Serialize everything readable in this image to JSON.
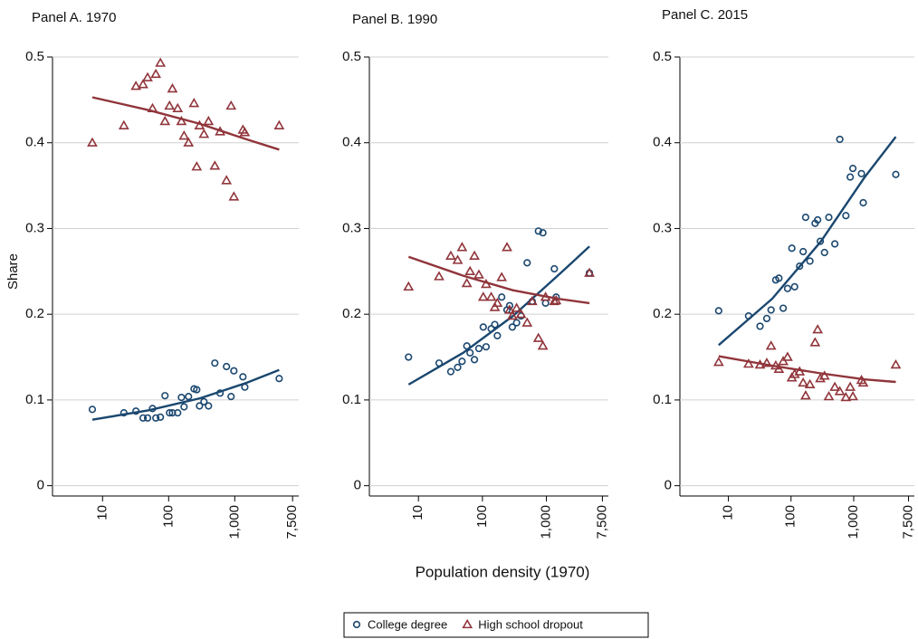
{
  "chart_data": [
    {
      "type": "scatter",
      "title": "Panel A. 1970",
      "y_label": "Share",
      "log_x": true,
      "grid": true,
      "xlim": [
        3.5,
        9300
      ],
      "ylim": [
        -0.012,
        0.5
      ],
      "xticks": [
        10,
        100,
        {
          "value": 1000,
          "label": "1,000"
        },
        {
          "value": 7500,
          "label": "7,500"
        }
      ],
      "yticks": [
        0,
        0.1,
        0.2,
        0.3,
        0.4,
        0.5
      ],
      "x": [
        7,
        21,
        32,
        41,
        48,
        57,
        64,
        75,
        88,
        103,
        114,
        137,
        156,
        171,
        200,
        242,
        266,
        293,
        342,
        401,
        500,
        600,
        750,
        880,
        970,
        1330,
        1420,
        4700
      ],
      "fit_x": [
        7,
        50,
        300,
        1500,
        4700
      ],
      "series": [
        {
          "name": "College degree",
          "color": "#1a476f",
          "marker": "circle",
          "values": [
            0.089,
            0.085,
            0.087,
            0.079,
            0.079,
            0.09,
            0.079,
            0.08,
            0.105,
            0.085,
            0.085,
            0.085,
            0.103,
            0.092,
            0.104,
            0.113,
            0.112,
            0.093,
            0.098,
            0.093,
            0.143,
            0.108,
            0.139,
            0.104,
            0.134,
            0.127,
            0.115,
            0.125
          ],
          "fit": [
            0.077,
            0.088,
            0.102,
            0.12,
            0.135
          ]
        },
        {
          "name": "High school dropout",
          "color": "#90353b",
          "marker": "triangle",
          "values": [
            0.4,
            0.42,
            0.466,
            0.468,
            0.476,
            0.44,
            0.48,
            0.493,
            0.425,
            0.443,
            0.463,
            0.44,
            0.425,
            0.408,
            0.4,
            0.446,
            0.372,
            0.42,
            0.41,
            0.425,
            0.373,
            0.413,
            0.356,
            0.443,
            0.337,
            0.415,
            0.412,
            0.42
          ],
          "fit": [
            0.453,
            0.438,
            0.422,
            0.404,
            0.392
          ]
        }
      ]
    },
    {
      "type": "scatter",
      "title": "Panel B. 1990",
      "x_label": "Population density (1970)",
      "log_x": true,
      "grid": true,
      "xlim": [
        3.5,
        9300
      ],
      "ylim": [
        -0.012,
        0.5
      ],
      "xticks": [
        10,
        100,
        {
          "value": 1000,
          "label": "1,000"
        },
        {
          "value": 7500,
          "label": "7,500"
        }
      ],
      "yticks": [
        0,
        0.1,
        0.2,
        0.3,
        0.4,
        0.5
      ],
      "x": [
        7,
        21,
        32,
        41,
        48,
        57,
        64,
        75,
        88,
        103,
        114,
        137,
        156,
        171,
        200,
        242,
        266,
        293,
        342,
        401,
        500,
        600,
        750,
        880,
        970,
        1330,
        1420,
        4700
      ],
      "fit_x": [
        7,
        50,
        300,
        1500,
        4700
      ],
      "series": [
        {
          "color": "#1a476f",
          "marker": "circle",
          "values": [
            0.15,
            0.143,
            0.133,
            0.138,
            0.145,
            0.163,
            0.155,
            0.147,
            0.16,
            0.185,
            0.162,
            0.183,
            0.188,
            0.175,
            0.22,
            0.205,
            0.21,
            0.185,
            0.19,
            0.198,
            0.26,
            0.215,
            0.297,
            0.295,
            0.213,
            0.253,
            0.22,
            0.248
          ],
          "fit": [
            0.118,
            0.155,
            0.198,
            0.245,
            0.279
          ]
        },
        {
          "color": "#90353b",
          "marker": "triangle",
          "values": [
            0.232,
            0.244,
            0.268,
            0.263,
            0.278,
            0.236,
            0.25,
            0.268,
            0.246,
            0.22,
            0.235,
            0.22,
            0.208,
            0.213,
            0.243,
            0.278,
            0.205,
            0.198,
            0.207,
            0.2,
            0.19,
            0.215,
            0.172,
            0.163,
            0.22,
            0.215,
            0.216,
            0.248
          ],
          "fit": [
            0.267,
            0.245,
            0.228,
            0.218,
            0.213
          ]
        }
      ]
    },
    {
      "type": "scatter",
      "title": "Panel C. 2015",
      "log_x": true,
      "grid": true,
      "xlim": [
        3.5,
        9300
      ],
      "ylim": [
        -0.012,
        0.5
      ],
      "xticks": [
        10,
        100,
        {
          "value": 1000,
          "label": "1,000"
        },
        {
          "value": 7500,
          "label": "7,500"
        }
      ],
      "yticks": [
        0,
        0.1,
        0.2,
        0.3,
        0.4,
        0.5
      ],
      "x": [
        7,
        21,
        32,
        41,
        48,
        57,
        64,
        75,
        88,
        103,
        114,
        137,
        156,
        171,
        200,
        242,
        266,
        293,
        342,
        401,
        500,
        600,
        750,
        880,
        970,
        1330,
        1420,
        4700
      ],
      "fit_x": [
        7,
        50,
        300,
        1500,
        4700
      ],
      "series": [
        {
          "color": "#1a476f",
          "marker": "circle",
          "values": [
            0.204,
            0.198,
            0.186,
            0.195,
            0.205,
            0.24,
            0.242,
            0.207,
            0.23,
            0.277,
            0.232,
            0.256,
            0.273,
            0.313,
            0.262,
            0.306,
            0.31,
            0.285,
            0.272,
            0.313,
            0.282,
            0.404,
            0.315,
            0.36,
            0.37,
            0.364,
            0.33,
            0.363
          ],
          "fit": [
            0.164,
            0.218,
            0.285,
            0.36,
            0.407
          ]
        },
        {
          "color": "#90353b",
          "marker": "triangle",
          "values": [
            0.144,
            0.142,
            0.141,
            0.143,
            0.163,
            0.14,
            0.136,
            0.145,
            0.15,
            0.126,
            0.13,
            0.133,
            0.12,
            0.105,
            0.118,
            0.167,
            0.182,
            0.125,
            0.128,
            0.104,
            0.115,
            0.11,
            0.103,
            0.115,
            0.104,
            0.123,
            0.12,
            0.141
          ],
          "fit": [
            0.151,
            0.14,
            0.131,
            0.124,
            0.121
          ]
        }
      ]
    }
  ]
}
